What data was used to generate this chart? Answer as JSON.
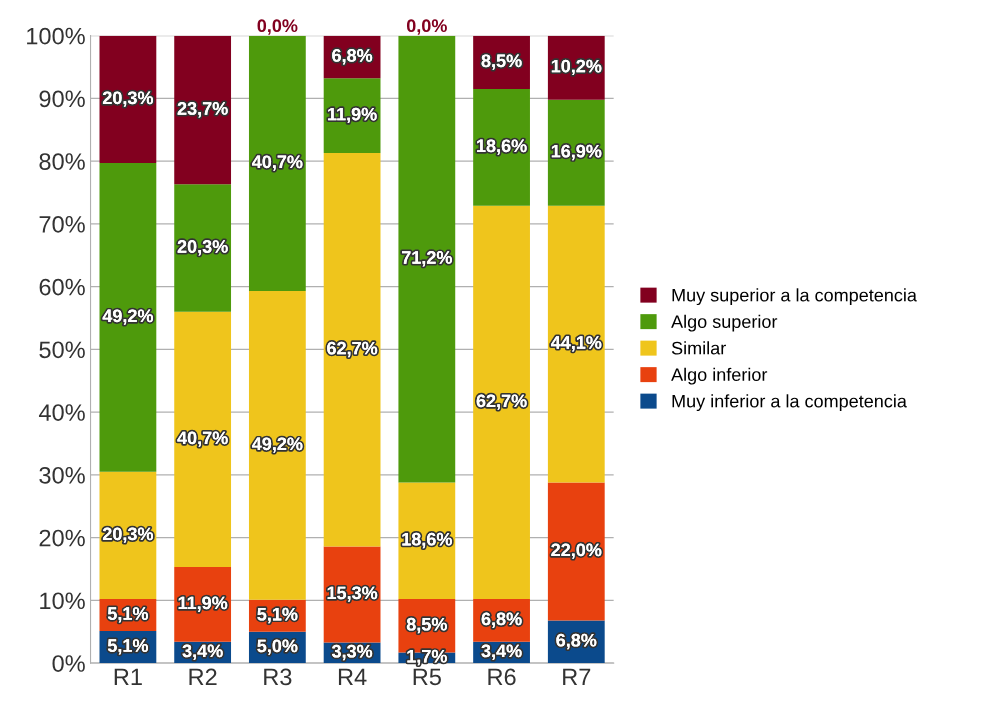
{
  "chart_data": {
    "type": "bar",
    "stacked": true,
    "categories": [
      "R1",
      "R2",
      "R3",
      "R4",
      "R5",
      "R6",
      "R7"
    ],
    "ylim": [
      0,
      100
    ],
    "yticks": [
      {
        "value": 0,
        "label": "0%"
      },
      {
        "value": 10,
        "label": "10%"
      },
      {
        "value": 20,
        "label": "20%"
      },
      {
        "value": 30,
        "label": "30%"
      },
      {
        "value": 40,
        "label": "40%"
      },
      {
        "value": 50,
        "label": "50%"
      },
      {
        "value": 60,
        "label": "60%"
      },
      {
        "value": 70,
        "label": "70%"
      },
      {
        "value": 80,
        "label": "80%"
      },
      {
        "value": 90,
        "label": "90%"
      },
      {
        "value": 100,
        "label": "100%"
      }
    ],
    "grid": "y",
    "legend": "right",
    "series": [
      {
        "name": "Muy inferior a la competencia",
        "color": "#0b4a8c",
        "values": [
          5.1,
          3.4,
          5.0,
          3.3,
          1.7,
          3.4,
          6.8
        ],
        "value_labels": [
          "5,1%",
          "3,4%",
          "5,0%",
          "3,3%",
          "1,7%",
          "3,4%",
          "6,8%"
        ]
      },
      {
        "name": "Algo inferior",
        "color": "#e8410f",
        "values": [
          5.1,
          11.9,
          5.1,
          15.3,
          8.5,
          6.8,
          22.0
        ],
        "value_labels": [
          "5,1%",
          "11,9%",
          "5,1%",
          "15,3%",
          "8,5%",
          "6,8%",
          "22,0%"
        ]
      },
      {
        "name": "Similar",
        "color": "#efc51c",
        "values": [
          20.3,
          40.7,
          49.2,
          62.7,
          18.6,
          62.7,
          44.1
        ],
        "value_labels": [
          "20,3%",
          "40,7%",
          "49,2%",
          "62,7%",
          "18,6%",
          "62,7%",
          "44,1%"
        ]
      },
      {
        "name": "Algo superior",
        "color": "#4e9a0c",
        "values": [
          49.2,
          20.3,
          40.7,
          11.9,
          71.2,
          18.6,
          16.9
        ],
        "value_labels": [
          "49,2%",
          "20,3%",
          "40,7%",
          "11,9%",
          "71,2%",
          "18,6%",
          "16,9%"
        ]
      },
      {
        "name": "Muy superior a la competencia",
        "color": "#82001f",
        "values": [
          20.3,
          23.7,
          0.0,
          6.8,
          0.0,
          8.5,
          10.2
        ],
        "value_labels": [
          "20,3%",
          "23,7%",
          "0,0%",
          "6,8%",
          "0,0%",
          "8,5%",
          "10,2%"
        ]
      }
    ]
  }
}
